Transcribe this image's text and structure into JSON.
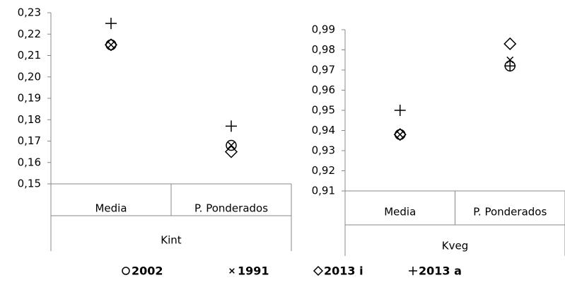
{
  "chart_data": [
    {
      "type": "scatter",
      "group": "Kint",
      "categories": [
        "Media",
        "P. Ponderados"
      ],
      "ylim": [
        0.15,
        0.23
      ],
      "yticks": [
        {
          "value": 0.15,
          "label": "0,15"
        },
        {
          "value": 0.16,
          "label": "0,16"
        },
        {
          "value": 0.17,
          "label": "0,17"
        },
        {
          "value": 0.18,
          "label": "0,18"
        },
        {
          "value": 0.19,
          "label": "0,19"
        },
        {
          "value": 0.2,
          "label": "0,20"
        },
        {
          "value": 0.21,
          "label": "0,21"
        },
        {
          "value": 0.22,
          "label": "0,22"
        },
        {
          "value": 0.23,
          "label": "0,23"
        }
      ],
      "series": [
        {
          "name": "2002",
          "marker": "circle",
          "color": "#000000",
          "values": [
            0.215,
            0.168
          ]
        },
        {
          "name": "1991",
          "marker": "x",
          "color": "#000000",
          "values": [
            0.215,
            0.168
          ]
        },
        {
          "name": "2013 i",
          "marker": "diamond",
          "color": "#000000",
          "values": [
            0.215,
            0.165
          ]
        },
        {
          "name": "2013 a",
          "marker": "plus",
          "color": "#000000",
          "values": [
            0.225,
            0.177
          ]
        }
      ]
    },
    {
      "type": "scatter",
      "group": "Kveg",
      "categories": [
        "Media",
        "P. Ponderados"
      ],
      "ylim": [
        0.91,
        0.99
      ],
      "yticks": [
        {
          "value": 0.91,
          "label": "0,91"
        },
        {
          "value": 0.92,
          "label": "0,92"
        },
        {
          "value": 0.93,
          "label": "0,93"
        },
        {
          "value": 0.94,
          "label": "0,94"
        },
        {
          "value": 0.95,
          "label": "0,95"
        },
        {
          "value": 0.96,
          "label": "0,96"
        },
        {
          "value": 0.97,
          "label": "0,97"
        },
        {
          "value": 0.98,
          "label": "0,98"
        },
        {
          "value": 0.99,
          "label": "0,99"
        }
      ],
      "series": [
        {
          "name": "2002",
          "marker": "circle",
          "color": "#000000",
          "values": [
            0.938,
            0.972
          ]
        },
        {
          "name": "1991",
          "marker": "x",
          "color": "#000000",
          "values": [
            0.938,
            0.975
          ]
        },
        {
          "name": "2013 i",
          "marker": "diamond",
          "color": "#000000",
          "values": [
            0.938,
            0.983
          ]
        },
        {
          "name": "2013 a",
          "marker": "plus",
          "color": "#000000",
          "values": [
            0.95,
            0.972
          ]
        }
      ]
    }
  ]
}
